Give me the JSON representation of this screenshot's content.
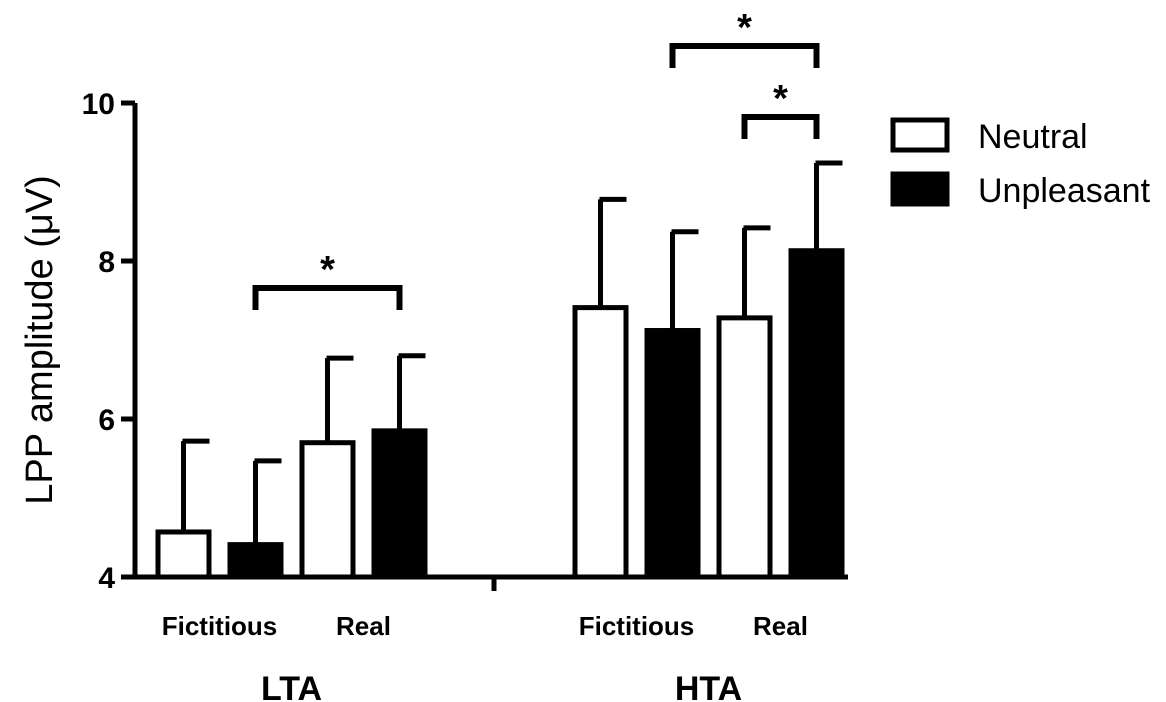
{
  "chart_data": {
    "type": "bar",
    "ylabel": "LPP amplitude (μV)",
    "ylim": [
      4,
      10
    ],
    "yticks": [
      "4",
      "6",
      "8",
      "10"
    ],
    "legend": {
      "position": "top-right",
      "entries": [
        {
          "name": "Neutral",
          "color": "#ffffff"
        },
        {
          "name": "Unpleasant",
          "color": "#000000"
        }
      ]
    },
    "groups": [
      {
        "name": "LTA",
        "conditions": [
          {
            "name": "Fictitious",
            "neutral": {
              "mean": 4.57,
              "err": 1.15
            },
            "unpleasant": {
              "mean": 4.41,
              "err": 1.06
            }
          },
          {
            "name": "Real",
            "neutral": {
              "mean": 5.7,
              "err": 1.07
            },
            "unpleasant": {
              "mean": 5.85,
              "err": 0.95
            }
          }
        ]
      },
      {
        "name": "HTA",
        "conditions": [
          {
            "name": "Fictitious",
            "neutral": {
              "mean": 7.41,
              "err": 1.37
            },
            "unpleasant": {
              "mean": 7.12,
              "err": 1.25
            }
          },
          {
            "name": "Real",
            "neutral": {
              "mean": 7.28,
              "err": 1.14
            },
            "unpleasant": {
              "mean": 8.13,
              "err": 1.11
            }
          }
        ]
      }
    ],
    "significance": [
      {
        "label": "*",
        "from": "LTA Fictitious Unpleasant",
        "to": "LTA Real Unpleasant"
      },
      {
        "label": "*",
        "from": "HTA Fictitious Unpleasant",
        "to": "HTA Real Unpleasant"
      },
      {
        "label": "*",
        "from": "HTA Real Neutral",
        "to": "HTA Real Unpleasant"
      }
    ]
  }
}
